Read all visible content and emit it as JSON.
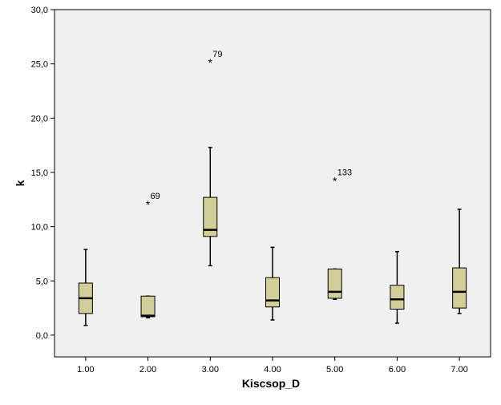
{
  "colors": {
    "plot_background": "#f0f0f0",
    "box_fill": "#d3ce97",
    "box_stroke": "#000000",
    "median": "#000000",
    "whisker": "#000000",
    "frame": "#000000"
  },
  "chart_data": {
    "type": "boxplot",
    "title": "",
    "xlabel": "Kiscsop_D",
    "ylabel": "k",
    "ylim": [
      -2,
      30
    ],
    "y_ticks": [
      0,
      5,
      10,
      15,
      20,
      25,
      30
    ],
    "y_tick_labels": [
      "0,0",
      "5,0",
      "10,0",
      "15,0",
      "20,0",
      "25,0",
      "30,0"
    ],
    "categories": [
      "1.00",
      "2.00",
      "3.00",
      "4.00",
      "5.00",
      "6.00",
      "7.00"
    ],
    "boxes": [
      {
        "category": "1.00",
        "min": 0.9,
        "q1": 2.0,
        "median": 3.4,
        "q3": 4.8,
        "max": 7.9,
        "outliers": []
      },
      {
        "category": "2.00",
        "min": 1.6,
        "q1": 1.7,
        "median": 1.8,
        "q3": 3.6,
        "max": 3.6,
        "outliers": [
          {
            "value": 12.1,
            "label": "69",
            "marker": "*"
          }
        ]
      },
      {
        "category": "3.00",
        "min": 6.4,
        "q1": 9.1,
        "median": 9.7,
        "q3": 12.7,
        "max": 17.3,
        "outliers": [
          {
            "value": 25.2,
            "label": "79",
            "marker": "*"
          }
        ]
      },
      {
        "category": "4.00",
        "min": 1.4,
        "q1": 2.6,
        "median": 3.2,
        "q3": 5.3,
        "max": 8.1,
        "outliers": []
      },
      {
        "category": "5.00",
        "min": 3.3,
        "q1": 3.4,
        "median": 4.0,
        "q3": 6.1,
        "max": 6.1,
        "outliers": [
          {
            "value": 14.3,
            "label": "133",
            "marker": "*"
          }
        ]
      },
      {
        "category": "6.00",
        "min": 1.1,
        "q1": 2.4,
        "median": 3.3,
        "q3": 4.6,
        "max": 7.7,
        "outliers": []
      },
      {
        "category": "7.00",
        "min": 2.0,
        "q1": 2.5,
        "median": 4.0,
        "q3": 6.2,
        "max": 11.6,
        "outliers": []
      }
    ],
    "grid": false,
    "legend": "none"
  }
}
